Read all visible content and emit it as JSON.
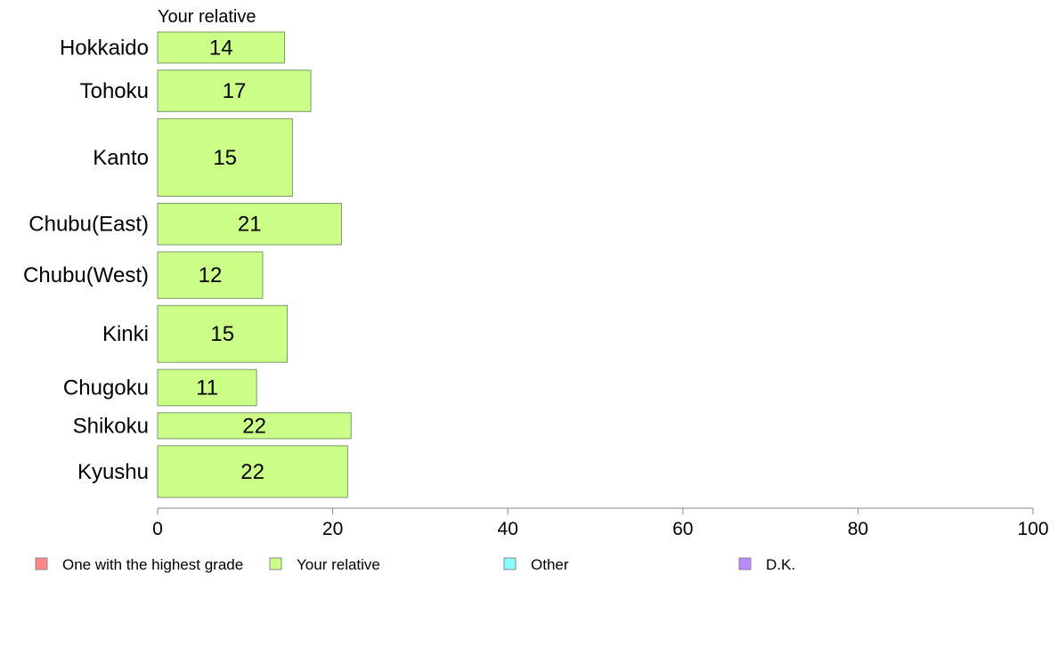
{
  "chart_data": {
    "type": "bar",
    "orientation": "horizontal",
    "title": "Your relative",
    "categories": [
      "Hokkaido",
      "Tohoku",
      "Kanto",
      "Chubu(East)",
      "Chubu(West)",
      "Kinki",
      "Chugoku",
      "Shikoku",
      "Kyushu"
    ],
    "series": [
      {
        "name": "Your relative",
        "color": "#ccff88",
        "values": [
          14.5,
          17.5,
          15.4,
          21.0,
          12.0,
          14.8,
          11.3,
          22.1,
          21.7
        ],
        "labels": [
          "14",
          "17",
          "15",
          "21",
          "12",
          "15",
          "11",
          "22",
          "22"
        ]
      }
    ],
    "bar_weights": [
      6,
      8,
      15,
      8,
      9,
      11,
      7,
      5,
      10
    ],
    "xlim": [
      0,
      100
    ],
    "xticks": [
      0,
      20,
      40,
      60,
      80,
      100
    ],
    "xtick_labels": [
      "0",
      "20",
      "40",
      "60",
      "80",
      "100"
    ],
    "grid": false,
    "legend_position": "bottom",
    "legend": [
      {
        "label": "One with the highest grade",
        "color": "#ff8888"
      },
      {
        "label": "Your relative",
        "color": "#ccff88"
      },
      {
        "label": "Other",
        "color": "#88ffff"
      },
      {
        "label": "D.K.",
        "color": "#bb88ff"
      }
    ],
    "bar_stroke": "#7a9a6a",
    "axis_color": "#888888"
  }
}
